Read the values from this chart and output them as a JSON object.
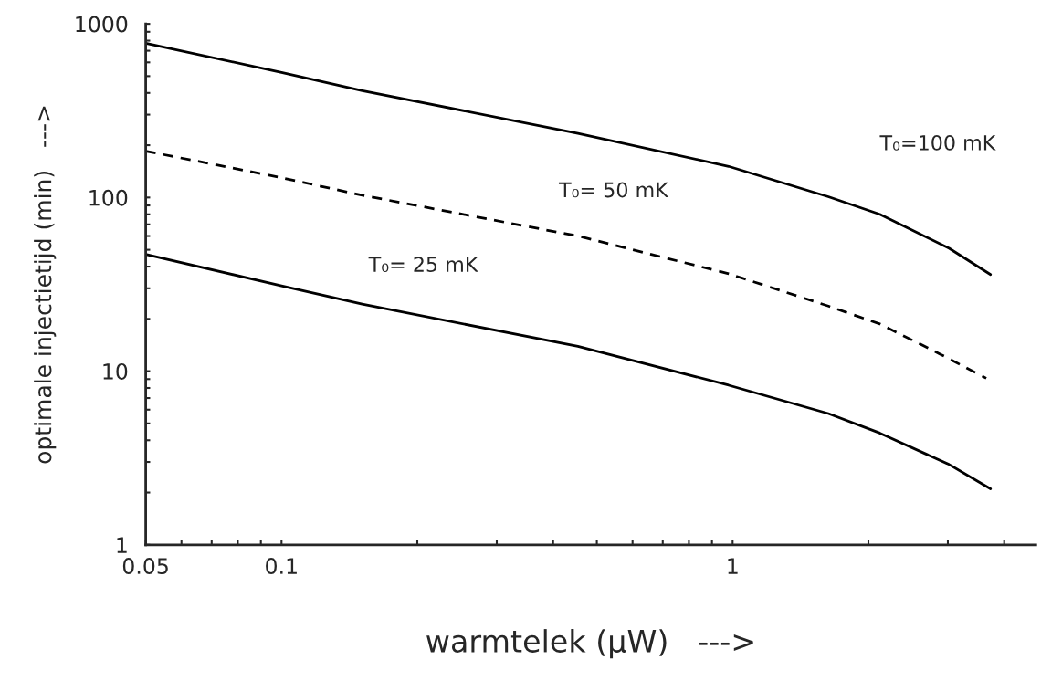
{
  "chart_data": {
    "type": "line",
    "log": "xy",
    "xlabel": "warmtelek (µW)   --->",
    "ylabel": "optimale injectietijd (min)   --->",
    "x": [
      0.05,
      0.1,
      0.151,
      0.454,
      0.98,
      1.63,
      2.12,
      3.02,
      3.73
    ],
    "series": [
      {
        "name": "T₀=100 mK",
        "color": "#000000",
        "line_style": "solid",
        "values": [
          773,
          525,
          412,
          234,
          151,
          101,
          80,
          51,
          36
        ]
      },
      {
        "name": "T₀= 50 mK",
        "color": "#000000",
        "line_style": "dashed",
        "x": [
          0.05,
          0.1,
          0.151,
          0.454,
          0.98,
          1.63,
          2.12,
          2.89,
          3.65
        ],
        "values": [
          185,
          130,
          103,
          60,
          36.4,
          23.7,
          18.7,
          12.5,
          9.1
        ]
      },
      {
        "name": "T₀= 25 mK",
        "color": "#000000",
        "line_style": "solid",
        "values": [
          47,
          31,
          24.3,
          13.9,
          8.3,
          5.7,
          4.4,
          2.9,
          2.1
        ]
      }
    ],
    "xlim": [
      0.05,
      4.7
    ],
    "ylim": [
      1,
      1000
    ],
    "xticks": [
      0.05,
      {
        "value": 0.06,
        "label": null
      },
      {
        "value": 0.07,
        "label": null
      },
      {
        "value": 0.08,
        "label": null
      },
      {
        "value": 0.09,
        "label": null
      },
      0.1,
      {
        "value": 0.2,
        "label": null
      },
      {
        "value": 0.3,
        "label": null
      },
      {
        "value": 0.4,
        "label": null
      },
      {
        "value": 0.5,
        "label": null
      },
      {
        "value": 0.6,
        "label": null
      },
      {
        "value": 0.7,
        "label": null
      },
      {
        "value": 0.8,
        "label": null
      },
      {
        "value": 0.9,
        "label": null
      },
      1,
      {
        "value": 2,
        "label": null
      },
      {
        "value": 3,
        "label": null
      },
      {
        "value": 4,
        "label": null
      }
    ],
    "yticks": [
      1,
      {
        "value": 2,
        "label": null
      },
      {
        "value": 3,
        "label": null
      },
      {
        "value": 4,
        "label": null
      },
      {
        "value": 5,
        "label": null
      },
      {
        "value": 6,
        "label": null
      },
      {
        "value": 7,
        "label": null
      },
      {
        "value": 8,
        "label": null
      },
      {
        "value": 9,
        "label": null
      },
      10,
      {
        "value": 20,
        "label": null
      },
      {
        "value": 30,
        "label": null
      },
      {
        "value": 40,
        "label": null
      },
      {
        "value": 50,
        "label": null
      },
      {
        "value": 60,
        "label": null
      },
      {
        "value": 70,
        "label": null
      },
      {
        "value": 80,
        "label": null
      },
      {
        "value": 90,
        "label": null
      },
      100,
      {
        "value": 200,
        "label": null
      },
      {
        "value": 300,
        "label": null
      },
      {
        "value": 400,
        "label": null
      },
      {
        "value": 500,
        "label": null
      },
      {
        "value": 600,
        "label": null
      },
      {
        "value": 700,
        "label": null
      },
      {
        "value": 800,
        "label": null
      },
      {
        "value": 900,
        "label": null
      },
      1000
    ],
    "grid": false,
    "legend": false
  }
}
